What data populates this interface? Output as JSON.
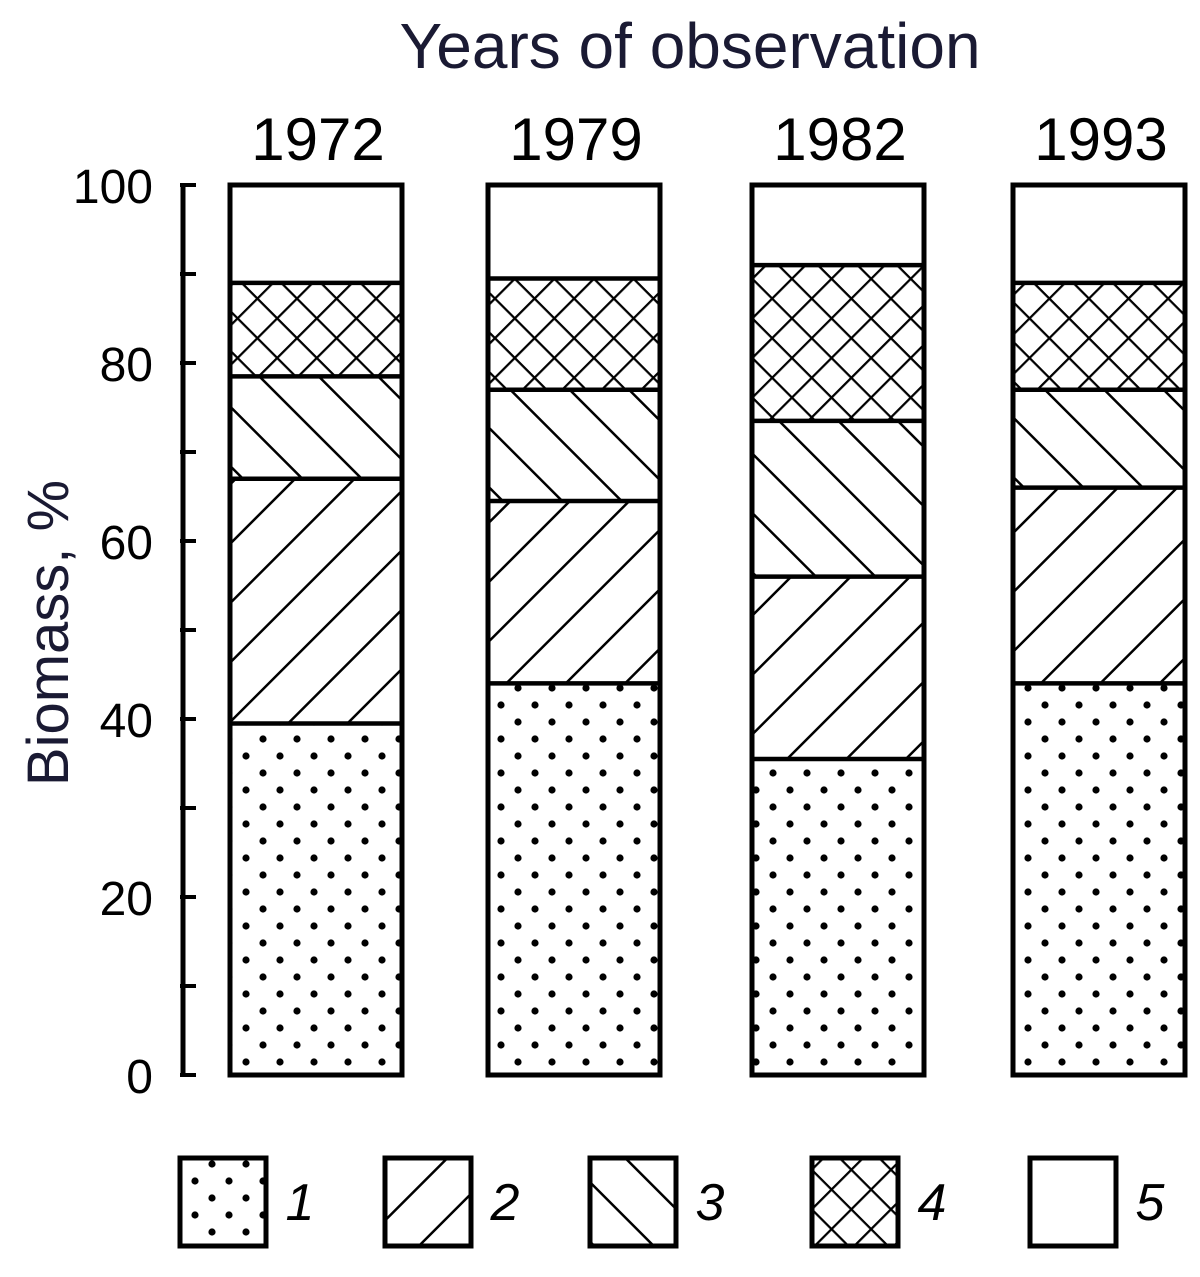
{
  "chart_data": {
    "type": "bar",
    "stacked": true,
    "title": "Years of observation",
    "ylabel": "Biomass, %",
    "xlabel": "",
    "categories": [
      "1972",
      "1979",
      "1982",
      "1993"
    ],
    "ylim": [
      0,
      100
    ],
    "y_ticks": [
      "0",
      "20",
      "40",
      "60",
      "80",
      "100"
    ],
    "series": [
      {
        "name": "1",
        "pattern": "dots",
        "values": [
          39.5,
          44,
          35.5,
          44
        ]
      },
      {
        "name": "2",
        "pattern": "diagonal-up",
        "values": [
          27.5,
          20.5,
          20.5,
          22
        ]
      },
      {
        "name": "3",
        "pattern": "diagonal-down",
        "values": [
          11.5,
          12.5,
          17.5,
          11
        ]
      },
      {
        "name": "4",
        "pattern": "crosshatch",
        "values": [
          10.5,
          12.5,
          17.5,
          12
        ]
      },
      {
        "name": "5",
        "pattern": "empty",
        "values": [
          11,
          10.5,
          9,
          11
        ]
      }
    ],
    "legend_position": "bottom",
    "grid": false,
    "colors": {
      "ink": "#000000",
      "background": "#ffffff",
      "title": "#1a1a33"
    }
  }
}
